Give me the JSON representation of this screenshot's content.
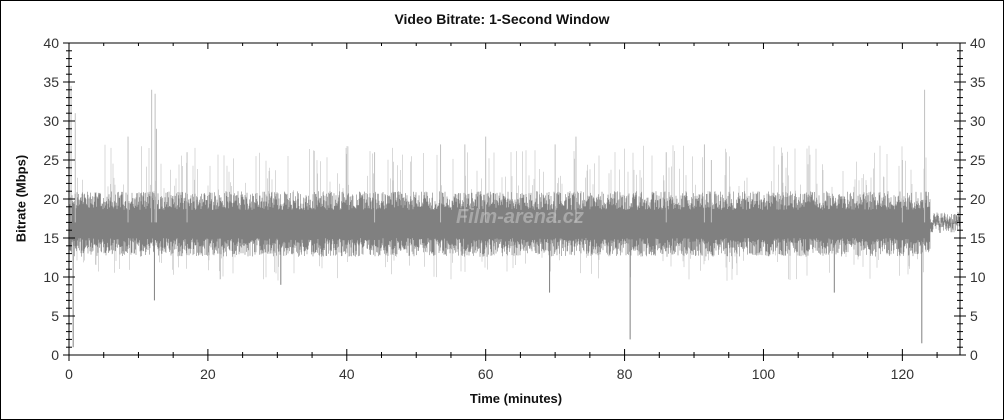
{
  "chart_data": {
    "type": "line",
    "title": "Video Bitrate: 1-Second Window",
    "xlabel": "Time (minutes)",
    "ylabel": "Bitrate (Mbps)",
    "xlim": [
      0,
      128.3
    ],
    "ylim": [
      0,
      40
    ],
    "xticks": [
      0,
      20,
      40,
      60,
      80,
      100,
      120
    ],
    "yticks": [
      0,
      5,
      10,
      15,
      20,
      25,
      30,
      35,
      40
    ],
    "grid": false,
    "right_axis_mirror": true,
    "series_color": "#808080",
    "series_peak_color": "#c0c0c0",
    "baseline_mbps": 17,
    "typical_range_mbps": [
      13,
      21
    ],
    "flat_segment": {
      "start_min": 124,
      "end_min": 128.3,
      "value_mbps": 17
    },
    "spikes": [
      [
        0.3,
        34.5
      ],
      [
        0.6,
        1.0
      ],
      [
        0.9,
        31
      ],
      [
        8.5,
        28
      ],
      [
        11.9,
        34
      ],
      [
        12.4,
        33.5
      ],
      [
        12.6,
        29
      ],
      [
        12.3,
        7
      ],
      [
        17,
        26
      ],
      [
        30.5,
        9
      ],
      [
        44,
        26
      ],
      [
        53.5,
        27
      ],
      [
        57,
        27
      ],
      [
        60,
        28
      ],
      [
        69.2,
        8
      ],
      [
        70,
        27
      ],
      [
        73,
        28
      ],
      [
        80.8,
        2
      ],
      [
        86,
        26
      ],
      [
        91.5,
        27
      ],
      [
        92.5,
        25
      ],
      [
        110.2,
        8
      ],
      [
        122.8,
        1.5
      ],
      [
        123.2,
        34
      ],
      [
        120,
        25
      ]
    ]
  },
  "watermark": "Film-arena.cz"
}
